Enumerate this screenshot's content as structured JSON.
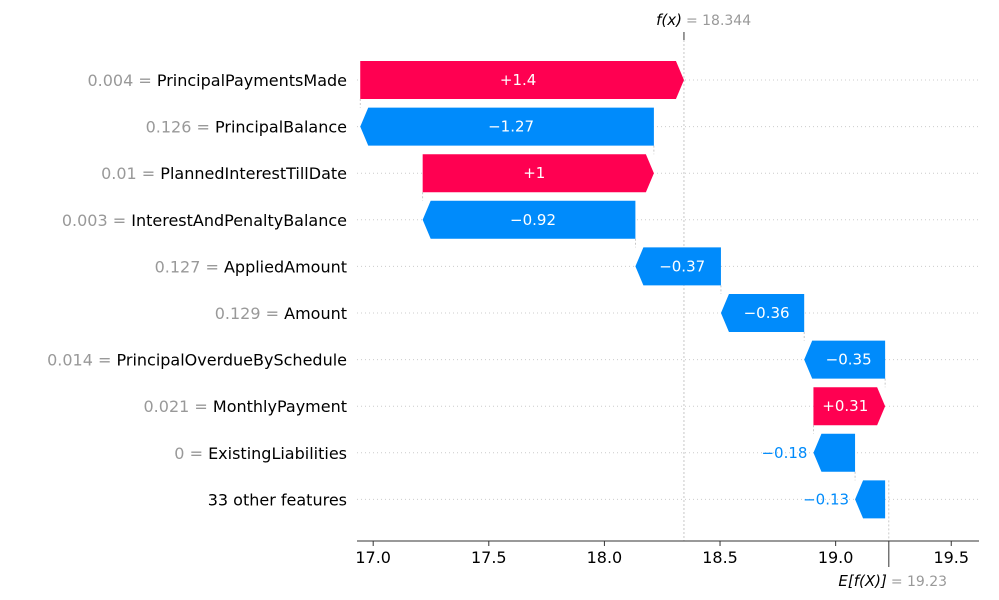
{
  "chart_data": {
    "type": "waterfall",
    "base_value": 19.23,
    "output_value": 18.344,
    "fx_label_prefix": "f(x)",
    "fx_label_value": "= 18.344",
    "efx_label_prefix": "E[f(X)]",
    "efx_label_value": "= 19.23",
    "xlim": [
      16.93,
      19.62
    ],
    "xticks": [
      "17.0",
      "17.5",
      "18.0",
      "18.5",
      "19.0",
      "19.5"
    ],
    "grid": "dotted horizontal lines per row",
    "colors": {
      "positive": "#ff0051",
      "negative": "#008bfb",
      "text_gray": "#999999"
    },
    "features": [
      {
        "value_text": "0.004 =",
        "name": "PrincipalPaymentsMade",
        "contribution": 1.4,
        "label": "+1.4"
      },
      {
        "value_text": "0.126 =",
        "name": "PrincipalBalance",
        "contribution": -1.27,
        "label": "−1.27"
      },
      {
        "value_text": "0.01 =",
        "name": "PlannedInterestTillDate",
        "contribution": 1.0,
        "label": "+1"
      },
      {
        "value_text": "0.003 =",
        "name": "InterestAndPenaltyBalance",
        "contribution": -0.92,
        "label": "−0.92"
      },
      {
        "value_text": "0.127 =",
        "name": "AppliedAmount",
        "contribution": -0.37,
        "label": "−0.37"
      },
      {
        "value_text": "0.129 =",
        "name": "Amount",
        "contribution": -0.36,
        "label": "−0.36"
      },
      {
        "value_text": "0.014 =",
        "name": "PrincipalOverdueBySchedule",
        "contribution": -0.35,
        "label": "−0.35"
      },
      {
        "value_text": "0.021 =",
        "name": "MonthlyPayment",
        "contribution": 0.31,
        "label": "+0.31"
      },
      {
        "value_text": "0 =",
        "name": "ExistingLiabilities",
        "contribution": -0.18,
        "label": "−0.18"
      },
      {
        "value_text": "",
        "name": "33 other features",
        "contribution": -0.13,
        "label": "−0.13"
      }
    ]
  }
}
